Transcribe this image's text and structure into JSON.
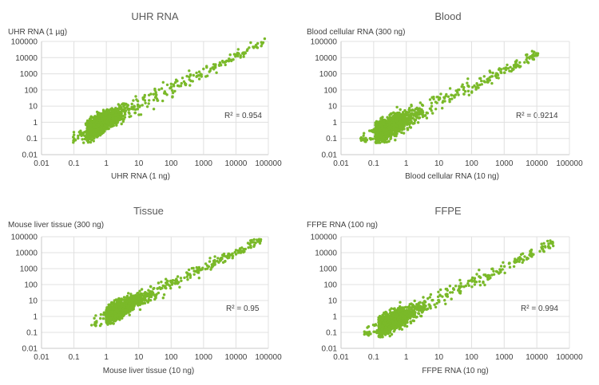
{
  "chart_data": [
    {
      "type": "scatter",
      "title": "UHR RNA",
      "xlabel": "UHR RNA (1 ng)",
      "ylabel": "UHR RNA (1 µg)",
      "x_scale": "log",
      "y_scale": "log",
      "xlim": [
        0.01,
        100000
      ],
      "ylim": [
        0.01,
        100000
      ],
      "x_ticks": [
        "0.01",
        "0.1",
        "1",
        "10",
        "100",
        "1000",
        "10000",
        "100000"
      ],
      "y_ticks": [
        "0.01",
        "0.1",
        "1",
        "10",
        "100",
        "1000",
        "10000",
        "100000"
      ],
      "grid": true,
      "color": "#7ab929",
      "annotation": {
        "r2_label": "R² = 0.954"
      },
      "trend": {
        "x_min": 0.09,
        "x_max": 80000,
        "y_at_x1": 1.2,
        "slope": 1.0,
        "spread_low": 0.6,
        "spread_high": 0.22,
        "n": 1300
      }
    },
    {
      "type": "scatter",
      "title": "Blood",
      "xlabel": "Blood cellular RNA (10 ng)",
      "ylabel": "Blood cellular RNA (300 ng)",
      "x_scale": "log",
      "y_scale": "log",
      "xlim": [
        0.01,
        100000
      ],
      "ylim": [
        0.01,
        100000
      ],
      "x_ticks": [
        "0.01",
        "0.1",
        "1",
        "10",
        "100",
        "1000",
        "10000",
        "100000"
      ],
      "y_ticks": [
        "0.01",
        "0.1",
        "1",
        "10",
        "100",
        "1000",
        "10000",
        "100000"
      ],
      "grid": true,
      "color": "#7ab929",
      "annotation": {
        "r2_label": "R² = 0.9214"
      },
      "trend": {
        "x_min": 0.04,
        "x_max": 11000,
        "y_at_x1": 1.6,
        "slope": 1.0,
        "spread_low": 0.65,
        "spread_high": 0.22,
        "n": 1300
      }
    },
    {
      "type": "scatter",
      "title": "Tissue",
      "xlabel": "Mouse liver tissue (10 ng)",
      "ylabel": "Mouse liver tissue (300 ng)",
      "x_scale": "log",
      "y_scale": "log",
      "xlim": [
        0.01,
        100000
      ],
      "ylim": [
        0.01,
        100000
      ],
      "x_ticks": [
        "0.01",
        "0.1",
        "1",
        "10",
        "100",
        "1000",
        "10000",
        "100000"
      ],
      "y_ticks": [
        "0.01",
        "0.1",
        "1",
        "10",
        "100",
        "1000",
        "10000",
        "100000"
      ],
      "grid": true,
      "color": "#7ab929",
      "annotation": {
        "r2_label": "R² = 0.95"
      },
      "trend": {
        "x_min": 0.35,
        "x_max": 60000,
        "y_at_x1": 1.1,
        "slope": 1.0,
        "spread_low": 0.5,
        "spread_high": 0.22,
        "n": 1300
      }
    },
    {
      "type": "scatter",
      "title": "FFPE",
      "xlabel": "FFPE RNA (10 ng)",
      "ylabel": "FFPE RNA (100 ng)",
      "x_scale": "log",
      "y_scale": "log",
      "xlim": [
        0.01,
        100000
      ],
      "ylim": [
        0.01,
        100000
      ],
      "x_ticks": [
        "0.01",
        "0.1",
        "1",
        "10",
        "100",
        "1000",
        "10000",
        "100000"
      ],
      "y_ticks": [
        "0.01",
        "0.1",
        "1",
        "10",
        "100",
        "1000",
        "10000",
        "100000"
      ],
      "grid": true,
      "color": "#7ab929",
      "annotation": {
        "r2_label": "R² = 0.994"
      },
      "trend": {
        "x_min": 0.05,
        "x_max": 35000,
        "y_at_x1": 1.3,
        "slope": 1.0,
        "spread_low": 0.6,
        "spread_high": 0.22,
        "n": 1300
      }
    }
  ]
}
